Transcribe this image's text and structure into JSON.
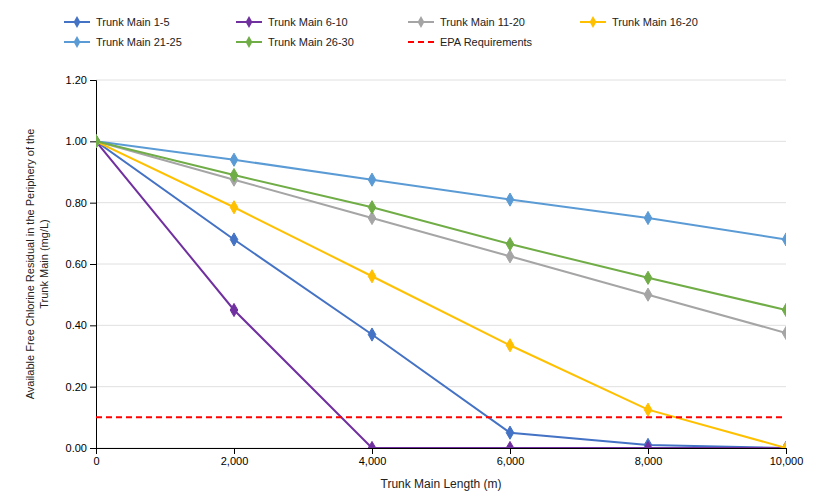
{
  "chart_data": {
    "type": "line",
    "x": [
      0,
      2000,
      4000,
      6000,
      8000,
      10000
    ],
    "series": [
      {
        "name": "Trunk Main 1-5",
        "color": "#4472C4",
        "marker": "diamond",
        "values": [
          1.0,
          0.68,
          0.37,
          0.05,
          0.01,
          0.0
        ]
      },
      {
        "name": "Trunk Main 6-10",
        "color": "#7030A0",
        "marker": "diamond",
        "values": [
          1.0,
          0.45,
          0.0,
          0.0,
          0.0,
          0.0
        ]
      },
      {
        "name": "Trunk Main 11-20",
        "color": "#A5A5A5",
        "marker": "diamond",
        "values": [
          1.0,
          0.875,
          0.75,
          0.625,
          0.5,
          0.375
        ]
      },
      {
        "name": "Trunk Main 16-20",
        "color": "#FFC000",
        "marker": "diamond",
        "values": [
          1.0,
          0.785,
          0.56,
          0.335,
          0.125,
          0.0
        ]
      },
      {
        "name": "Trunk Main 21-25",
        "color": "#5B9BD5",
        "marker": "diamond",
        "values": [
          1.0,
          0.94,
          0.875,
          0.81,
          0.75,
          0.68
        ]
      },
      {
        "name": "Trunk Main 26-30",
        "color": "#70AD47",
        "marker": "diamond",
        "values": [
          1.0,
          0.89,
          0.785,
          0.665,
          0.555,
          0.45
        ]
      },
      {
        "name": "EPA Requirements",
        "type": "hline",
        "line_style": "dashed",
        "color": "#FF0000",
        "value": 0.1
      }
    ],
    "xlim": [
      0,
      10000
    ],
    "ylim": [
      0.0,
      1.2
    ],
    "xticks": [
      0,
      {
        "value": 2000,
        "label": "2,000"
      },
      {
        "value": 4000,
        "label": "4,000"
      },
      {
        "value": 6000,
        "label": "6,000"
      },
      {
        "value": 8000,
        "label": "8,000"
      },
      {
        "value": 10000,
        "label": "10,000"
      }
    ],
    "yticks": [
      {
        "value": 0.0,
        "label": "0.00"
      },
      {
        "value": 0.2,
        "label": "0.20"
      },
      {
        "value": 0.4,
        "label": "0.40"
      },
      {
        "value": 0.6,
        "label": "0.60"
      },
      {
        "value": 0.8,
        "label": "0.80"
      },
      {
        "value": 1.0,
        "label": "1.00"
      },
      {
        "value": 1.2,
        "label": "1.20"
      }
    ],
    "xlabel": "Trunk Main Length (m)",
    "ylabel": "Available Free Chlorine Residual in the Periphery of the\nTrunk Main (mg/L)",
    "grid": "y",
    "legend": "top"
  }
}
